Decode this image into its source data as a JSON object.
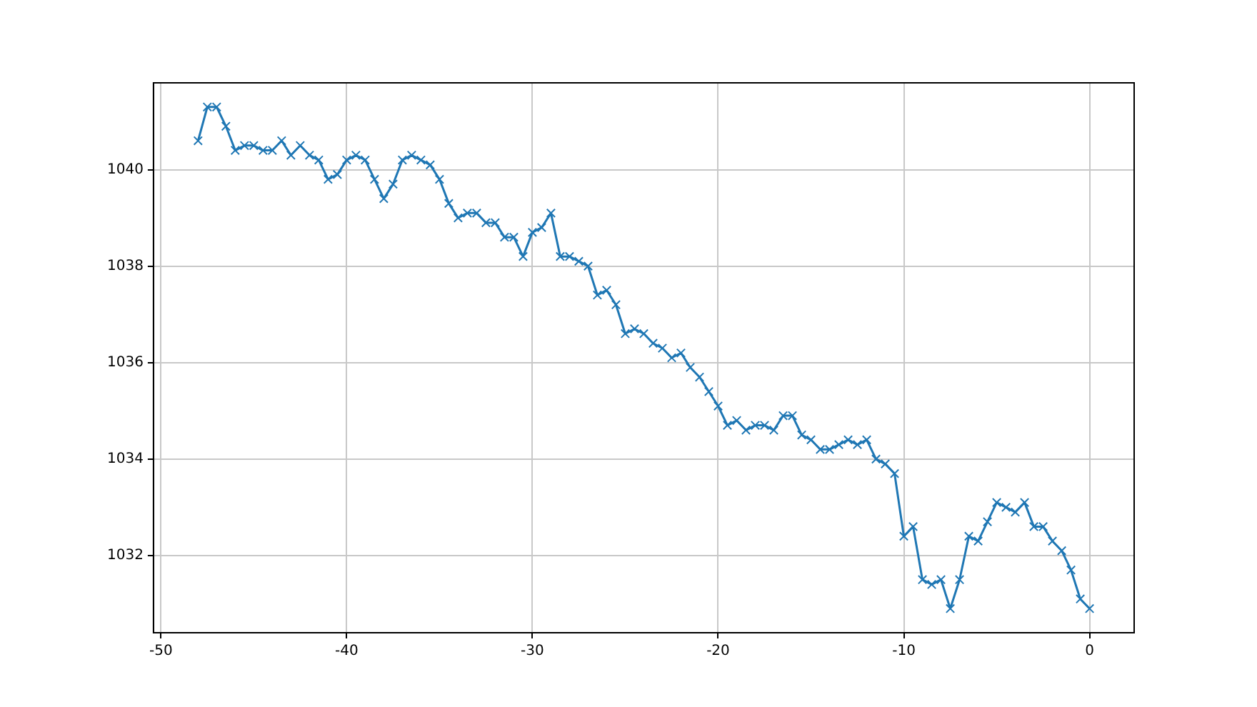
{
  "chart_data": {
    "type": "line",
    "x": [
      -48,
      -47.5,
      -47,
      -46.5,
      -46,
      -45.5,
      -45,
      -44.5,
      -44,
      -43.5,
      -43,
      -42.5,
      -42,
      -41.5,
      -41,
      -40.5,
      -40,
      -39.5,
      -39,
      -38.5,
      -38,
      -37.5,
      -37,
      -36.5,
      -36,
      -35.5,
      -35,
      -34.5,
      -34,
      -33.5,
      -33,
      -32.5,
      -32,
      -31.5,
      -31,
      -30.5,
      -30,
      -29.5,
      -29,
      -28.5,
      -28,
      -27.5,
      -27,
      -26.5,
      -26,
      -25.5,
      -25,
      -24.5,
      -24,
      -23.5,
      -23,
      -22.5,
      -22,
      -21.5,
      -21,
      -20.5,
      -20,
      -19.5,
      -19,
      -18.5,
      -18,
      -17.5,
      -17,
      -16.5,
      -16,
      -15.5,
      -15,
      -14.5,
      -14,
      -13.5,
      -13,
      -12.5,
      -12,
      -11.5,
      -11,
      -10.5,
      -10,
      -9.5,
      -9,
      -8.5,
      -8,
      -7.5,
      -7,
      -6.5,
      -6,
      -5.5,
      -5,
      -4.5,
      -4,
      -3.5,
      -3,
      -2.5,
      -2,
      -1.5,
      -1,
      -0.5,
      0
    ],
    "series": [
      {
        "color": "#1f77b4",
        "values": [
          1040.6,
          1041.3,
          1041.3,
          1040.9,
          1040.4,
          1040.5,
          1040.5,
          1040.4,
          1040.4,
          1040.6,
          1040.3,
          1040.5,
          1040.3,
          1040.2,
          1039.8,
          1039.9,
          1040.2,
          1040.3,
          1040.2,
          1039.8,
          1039.4,
          1039.7,
          1040.2,
          1040.3,
          1040.2,
          1040.1,
          1039.8,
          1039.3,
          1039.0,
          1039.1,
          1039.1,
          1038.9,
          1038.9,
          1038.6,
          1038.6,
          1038.2,
          1038.7,
          1038.8,
          1039.1,
          1038.2,
          1038.2,
          1038.1,
          1038.0,
          1037.4,
          1037.5,
          1037.2,
          1036.6,
          1036.7,
          1036.6,
          1036.4,
          1036.3,
          1036.1,
          1036.2,
          1035.9,
          1035.7,
          1035.4,
          1035.1,
          1034.7,
          1034.8,
          1034.6,
          1034.7,
          1034.7,
          1034.6,
          1034.9,
          1034.9,
          1034.5,
          1034.4,
          1034.2,
          1034.2,
          1034.3,
          1034.4,
          1034.3,
          1034.4,
          1034.0,
          1033.9,
          1033.7,
          1032.4,
          1032.6,
          1031.5,
          1031.4,
          1031.5,
          1030.9,
          1031.5,
          1032.4,
          1032.3,
          1032.7,
          1033.1,
          1033.0,
          1032.9,
          1033.1,
          1032.6,
          1032.6,
          1032.3,
          1032.1,
          1031.7,
          1031.1,
          1030.9
        ]
      }
    ],
    "xlim": [
      -50.4,
      2.4
    ],
    "xticks": [
      -50,
      -40,
      -30,
      -20,
      -10,
      0
    ],
    "ylim": [
      1030.4,
      1041.8
    ],
    "yticks": [
      1032,
      1034,
      1036,
      1038,
      1040
    ],
    "grid": true,
    "marker": "cross",
    "legend": false
  }
}
